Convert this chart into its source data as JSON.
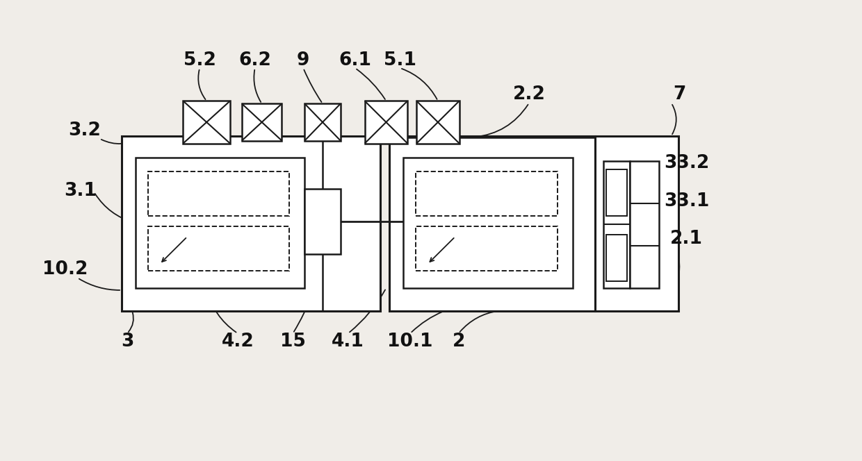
{
  "bg_color": "#f0ede8",
  "line_color": "#1a1a1a",
  "label_color": "#111111",
  "figsize": [
    12.4,
    6.64
  ],
  "dpi": 100
}
